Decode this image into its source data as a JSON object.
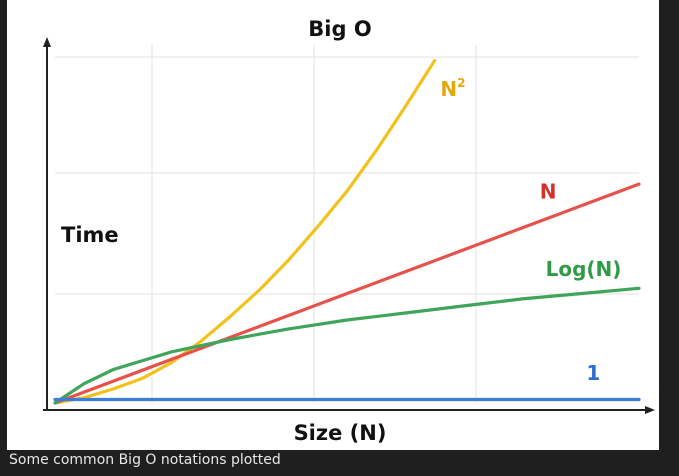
{
  "caption": "Some common Big O notations plotted",
  "colors": {
    "background": "#1f1f1f",
    "panel": "#ffffff",
    "axis": "#222222",
    "grid": "#e2e2e2"
  },
  "chart_data": {
    "type": "line",
    "title": "Big O",
    "xlabel": "Size (N)",
    "ylabel": "Time",
    "xlim": [
      0,
      10
    ],
    "ylim": [
      0,
      10
    ],
    "grid": true,
    "legend": "inline labels at line ends",
    "series": [
      {
        "name": "N",
        "superscript": "2",
        "color": "#f2c21b",
        "x": [
          0,
          0.5,
          1,
          1.5,
          2,
          2.5,
          3,
          3.5,
          4,
          4.5,
          5,
          5.5,
          6,
          6.5
        ],
        "y": [
          0,
          0.15,
          0.4,
          0.7,
          1.15,
          1.75,
          2.45,
          3.2,
          4.05,
          5.0,
          6.0,
          7.15,
          8.4,
          9.7
        ]
      },
      {
        "name": "N",
        "color": "#e8514a",
        "x": [
          0,
          10
        ],
        "y": [
          0,
          6.2
        ]
      },
      {
        "name": "Log(N)",
        "color": "#3fa55a",
        "x": [
          0,
          0.5,
          1,
          1.5,
          2,
          3,
          4,
          5,
          6,
          7,
          8,
          9,
          10
        ],
        "y": [
          0,
          0.55,
          0.95,
          1.2,
          1.45,
          1.8,
          2.1,
          2.35,
          2.55,
          2.75,
          2.95,
          3.1,
          3.25
        ]
      },
      {
        "name": "1",
        "color": "#3b7dd8",
        "x": [
          0,
          10
        ],
        "y": [
          0.1,
          0.1
        ]
      }
    ],
    "labels": [
      {
        "text": "N",
        "superscript": "2",
        "color": "#e3a80e",
        "x": 6.6,
        "y": 8.7
      },
      {
        "text": "N",
        "color": "#d6302b",
        "x": 8.3,
        "y": 5.8
      },
      {
        "text": "Log(N)",
        "color": "#2f9a48",
        "x": 8.4,
        "y": 3.6
      },
      {
        "text": "1",
        "color": "#2f6fcc",
        "x": 9.1,
        "y": 0.65
      }
    ]
  }
}
